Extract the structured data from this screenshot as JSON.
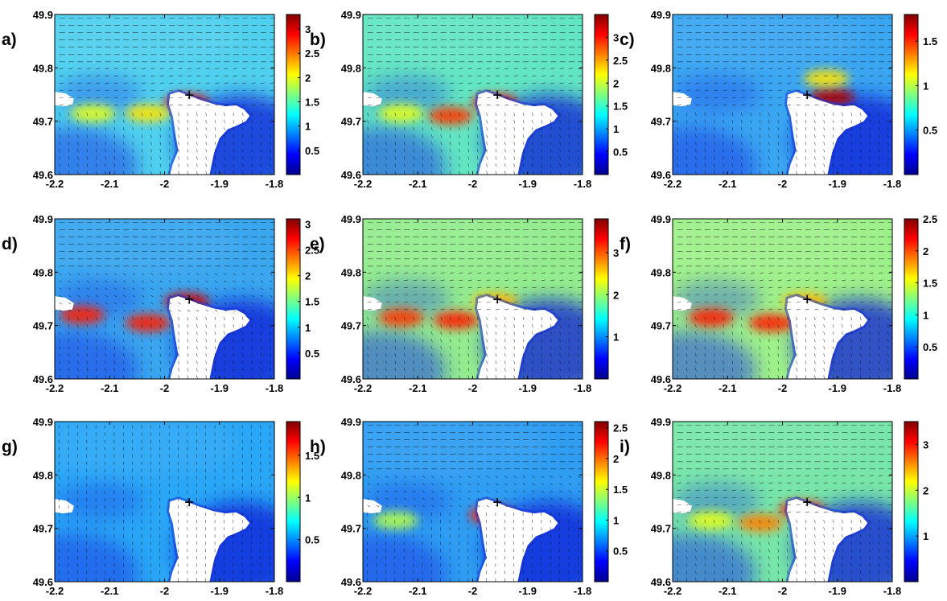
{
  "chart_data": [
    {
      "type": "heatmap",
      "label": "a)",
      "xlim": [
        -2.2,
        -1.8
      ],
      "ylim": [
        49.6,
        49.9
      ],
      "x_ticks": [
        "-2.2",
        "-2.1",
        "-2",
        "-1.9",
        "-1.8"
      ],
      "y_ticks": [
        "49.6",
        "49.7",
        "49.8",
        "49.9"
      ],
      "colorbar": {
        "min": 0,
        "max": 3.3,
        "ticks": [
          "0.5",
          "1",
          "1.5",
          "2",
          "2.5",
          "3"
        ]
      },
      "marker": {
        "x": -1.955,
        "y": 49.749,
        "symbol": "+"
      },
      "colormap": "jet",
      "vector_field": true,
      "hotspots": [
        {
          "x": -1.96,
          "y": 49.735,
          "rel": 0.9
        },
        {
          "x": -2.03,
          "y": 49.715,
          "rel": 0.65
        },
        {
          "x": -2.13,
          "y": 49.715,
          "rel": 0.6
        }
      ]
    },
    {
      "type": "heatmap",
      "label": "b)",
      "xlim": [
        -2.2,
        -1.8
      ],
      "ylim": [
        49.6,
        49.9
      ],
      "x_ticks": [
        "-2.2",
        "-2.1",
        "-2",
        "-1.9",
        "-1.8"
      ],
      "y_ticks": [
        "49.6",
        "49.7",
        "49.8",
        "49.9"
      ],
      "colorbar": {
        "min": 0,
        "max": 3.5,
        "ticks": [
          "0.5",
          "1",
          "1.5",
          "2",
          "2.5",
          "3"
        ]
      },
      "marker": {
        "x": -1.955,
        "y": 49.749,
        "symbol": "+"
      },
      "colormap": "jet",
      "vector_field": true,
      "hotspots": [
        {
          "x": -1.96,
          "y": 49.735,
          "rel": 0.88
        },
        {
          "x": -2.04,
          "y": 49.71,
          "rel": 0.82
        },
        {
          "x": -2.13,
          "y": 49.715,
          "rel": 0.6
        }
      ]
    },
    {
      "type": "heatmap",
      "label": "c)",
      "xlim": [
        -2.2,
        -1.8
      ],
      "ylim": [
        49.6,
        49.9
      ],
      "x_ticks": [
        "-2.2",
        "-2.1",
        "-2",
        "-1.9",
        "-1.8"
      ],
      "y_ticks": [
        "49.6",
        "49.7",
        "49.8",
        "49.9"
      ],
      "colorbar": {
        "min": 0,
        "max": 1.8,
        "ticks": [
          "0.5",
          "1",
          "1.5"
        ]
      },
      "marker": {
        "x": -1.955,
        "y": 49.749,
        "symbol": "+"
      },
      "colormap": "jet",
      "vector_field": true,
      "hotspots": [
        {
          "x": -1.91,
          "y": 49.745,
          "rel": 0.95
        },
        {
          "x": -1.92,
          "y": 49.78,
          "rel": 0.65
        }
      ]
    },
    {
      "type": "heatmap",
      "label": "d)",
      "xlim": [
        -2.2,
        -1.8
      ],
      "ylim": [
        49.6,
        49.9
      ],
      "x_ticks": [
        "-2.2",
        "-2.1",
        "-2",
        "-1.9",
        "-1.8"
      ],
      "y_ticks": [
        "49.6",
        "49.7",
        "49.8",
        "49.9"
      ],
      "colorbar": {
        "min": 0,
        "max": 3.1,
        "ticks": [
          "0.5",
          "1",
          "1.5",
          "2",
          "2.5",
          "3"
        ]
      },
      "marker": {
        "x": -1.955,
        "y": 49.749,
        "symbol": "+"
      },
      "colormap": "jet",
      "vector_field": true,
      "hotspots": [
        {
          "x": -1.96,
          "y": 49.745,
          "rel": 0.92
        },
        {
          "x": -2.03,
          "y": 49.705,
          "rel": 0.85
        },
        {
          "x": -2.15,
          "y": 49.72,
          "rel": 0.85
        }
      ]
    },
    {
      "type": "heatmap",
      "label": "e)",
      "xlim": [
        -2.2,
        -1.8
      ],
      "ylim": [
        49.6,
        49.9
      ],
      "x_ticks": [
        "-2.2",
        "-2.1",
        "-2",
        "-1.9",
        "-1.8"
      ],
      "y_ticks": [
        "49.6",
        "49.7",
        "49.8",
        "49.9"
      ],
      "colorbar": {
        "min": 0,
        "max": 3.8,
        "ticks": [
          "1",
          "2",
          "3"
        ]
      },
      "marker": {
        "x": -1.955,
        "y": 49.749,
        "symbol": "+"
      },
      "colormap": "jet",
      "vector_field": true,
      "hotspots": [
        {
          "x": -2.03,
          "y": 49.71,
          "rel": 0.85
        },
        {
          "x": -2.13,
          "y": 49.715,
          "rel": 0.82
        },
        {
          "x": -1.96,
          "y": 49.745,
          "rel": 0.7
        }
      ]
    },
    {
      "type": "heatmap",
      "label": "f)",
      "xlim": [
        -2.2,
        -1.8
      ],
      "ylim": [
        49.6,
        49.9
      ],
      "x_ticks": [
        "-2.2",
        "-2.1",
        "-2",
        "-1.9",
        "-1.8"
      ],
      "y_ticks": [
        "49.6",
        "49.7",
        "49.8",
        "49.9"
      ],
      "colorbar": {
        "min": 0,
        "max": 2.5,
        "ticks": [
          "0.5",
          "1",
          "1.5",
          "2",
          "2.5"
        ]
      },
      "marker": {
        "x": -1.955,
        "y": 49.749,
        "symbol": "+"
      },
      "colormap": "jet",
      "vector_field": true,
      "hotspots": [
        {
          "x": -2.02,
          "y": 49.705,
          "rel": 0.85
        },
        {
          "x": -2.13,
          "y": 49.715,
          "rel": 0.85
        },
        {
          "x": -1.96,
          "y": 49.745,
          "rel": 0.7
        }
      ]
    },
    {
      "type": "heatmap",
      "label": "g)",
      "xlim": [
        -2.2,
        -1.8
      ],
      "ylim": [
        49.6,
        49.9
      ],
      "x_ticks": [
        "-2.2",
        "-2.1",
        "-2",
        "-1.9",
        "-1.8"
      ],
      "y_ticks": [
        "49.6",
        "49.7",
        "49.8",
        "49.9"
      ],
      "colorbar": {
        "min": 0,
        "max": 1.9,
        "ticks": [
          "0.5",
          "1",
          "1.5"
        ]
      },
      "marker": {
        "x": -1.955,
        "y": 49.749,
        "symbol": "+"
      },
      "colormap": "jet",
      "vector_field": true,
      "hotspots": []
    },
    {
      "type": "heatmap",
      "label": "h)",
      "xlim": [
        -2.2,
        -1.8
      ],
      "ylim": [
        49.6,
        49.9
      ],
      "x_ticks": [
        "-2.2",
        "-2.1",
        "-2",
        "-1.9",
        "-1.8"
      ],
      "y_ticks": [
        "49.6",
        "49.7",
        "49.8",
        "49.9"
      ],
      "colorbar": {
        "min": 0,
        "max": 2.6,
        "ticks": [
          "0.5",
          "1",
          "1.5",
          "2",
          "2.5"
        ]
      },
      "marker": {
        "x": -1.955,
        "y": 49.749,
        "symbol": "+"
      },
      "colormap": "jet",
      "vector_field": true,
      "hotspots": [
        {
          "x": -1.965,
          "y": 49.725,
          "rel": 0.85
        },
        {
          "x": -2.14,
          "y": 49.715,
          "rel": 0.55
        }
      ]
    },
    {
      "type": "heatmap",
      "label": "i)",
      "xlim": [
        -2.2,
        -1.8
      ],
      "ylim": [
        49.6,
        49.9
      ],
      "x_ticks": [
        "-2.2",
        "-2.1",
        "-2",
        "-1.9",
        "-1.8"
      ],
      "y_ticks": [
        "49.6",
        "49.7",
        "49.8",
        "49.9"
      ],
      "colorbar": {
        "min": 0,
        "max": 3.5,
        "ticks": [
          "1",
          "2",
          "3"
        ]
      },
      "marker": {
        "x": -1.955,
        "y": 49.749,
        "symbol": "+"
      },
      "colormap": "jet",
      "vector_field": true,
      "hotspots": [
        {
          "x": -1.965,
          "y": 49.735,
          "rel": 0.85
        },
        {
          "x": -2.04,
          "y": 49.71,
          "rel": 0.75
        },
        {
          "x": -2.13,
          "y": 49.715,
          "rel": 0.6
        }
      ]
    }
  ]
}
